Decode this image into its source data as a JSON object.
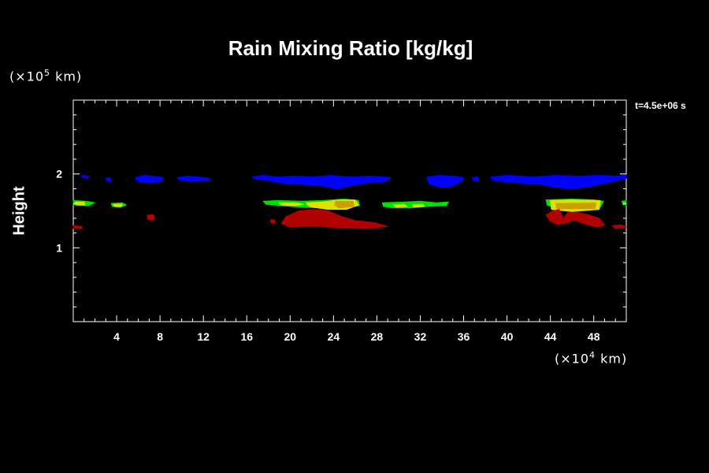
{
  "title": "Rain Mixing Ratio [kg/kg]",
  "time_label": "t=4.5e+06 s",
  "y_unit": {
    "prefix": "(×10",
    "exp": "5",
    "suffix": " km)"
  },
  "x_unit": {
    "prefix": "(×10",
    "exp": "4",
    "suffix": " km)"
  },
  "chart_data": {
    "type": "heatmap",
    "title": "Rain Mixing Ratio [kg/kg]",
    "ylabel": "Height",
    "xlabel": "",
    "xlim": [
      0,
      51
    ],
    "ylim": [
      0,
      3
    ],
    "x_ticks": [
      4,
      8,
      12,
      16,
      20,
      24,
      28,
      32,
      36,
      40,
      44,
      48
    ],
    "y_ticks": [
      1,
      2
    ],
    "colors": {
      "low": "#0000ff",
      "mid": "#00e000",
      "high": "#e0e000",
      "peak": "#c8a000",
      "deep": "#b00000"
    },
    "regions": [
      {
        "level": "low",
        "points": [
          [
            0.8,
            1.98
          ],
          [
            1.5,
            1.97
          ],
          [
            1.3,
            1.94
          ],
          [
            0.8,
            1.95
          ]
        ]
      },
      {
        "level": "low",
        "points": [
          [
            3.0,
            1.94
          ],
          [
            3.4,
            1.95
          ],
          [
            3.5,
            1.9
          ],
          [
            3.1,
            1.9
          ]
        ]
      },
      {
        "level": "low",
        "points": [
          [
            5.7,
            1.95
          ],
          [
            6.5,
            1.98
          ],
          [
            7.4,
            1.97
          ],
          [
            8.3,
            1.95
          ],
          [
            8.1,
            1.9
          ],
          [
            7.2,
            1.88
          ],
          [
            6.2,
            1.89
          ],
          [
            5.8,
            1.92
          ]
        ]
      },
      {
        "level": "low",
        "points": [
          [
            9.6,
            1.95
          ],
          [
            10.5,
            1.97
          ],
          [
            11.4,
            1.96
          ],
          [
            12.6,
            1.94
          ],
          [
            12.4,
            1.91
          ],
          [
            11.0,
            1.9
          ],
          [
            9.8,
            1.92
          ]
        ]
      },
      {
        "level": "low",
        "points": [
          [
            16.5,
            1.96
          ],
          [
            17.5,
            1.98
          ],
          [
            18.8,
            1.96
          ],
          [
            20.5,
            1.97
          ],
          [
            22.0,
            1.96
          ],
          [
            23.8,
            1.98
          ],
          [
            25.5,
            1.96
          ],
          [
            27.5,
            1.97
          ],
          [
            29.3,
            1.95
          ],
          [
            28.8,
            1.9
          ],
          [
            27.2,
            1.88
          ],
          [
            25.5,
            1.84
          ],
          [
            24.3,
            1.8
          ],
          [
            23.0,
            1.84
          ],
          [
            21.0,
            1.86
          ],
          [
            19.0,
            1.88
          ],
          [
            17.8,
            1.92
          ],
          [
            16.8,
            1.93
          ]
        ]
      },
      {
        "level": "low",
        "points": [
          [
            32.6,
            1.96
          ],
          [
            33.8,
            1.98
          ],
          [
            35.2,
            1.97
          ],
          [
            36.0,
            1.95
          ],
          [
            35.8,
            1.9
          ],
          [
            35.0,
            1.84
          ],
          [
            34.0,
            1.82
          ],
          [
            33.0,
            1.85
          ],
          [
            32.7,
            1.9
          ]
        ]
      },
      {
        "level": "low",
        "points": [
          [
            36.8,
            1.95
          ],
          [
            37.3,
            1.96
          ],
          [
            37.4,
            1.92
          ],
          [
            36.9,
            1.91
          ]
        ]
      },
      {
        "level": "low",
        "points": [
          [
            38.5,
            1.96
          ],
          [
            40.0,
            1.98
          ],
          [
            42.5,
            1.96
          ],
          [
            44.5,
            1.98
          ],
          [
            46.5,
            1.97
          ],
          [
            48.5,
            1.98
          ],
          [
            50.2,
            1.97
          ],
          [
            51.0,
            1.99
          ],
          [
            51.0,
            1.94
          ],
          [
            49.8,
            1.9
          ],
          [
            48.0,
            1.84
          ],
          [
            46.0,
            1.8
          ],
          [
            44.5,
            1.82
          ],
          [
            43.0,
            1.86
          ],
          [
            41.0,
            1.88
          ],
          [
            39.5,
            1.9
          ],
          [
            38.7,
            1.92
          ]
        ]
      },
      {
        "level": "mid",
        "points": [
          [
            0.0,
            1.64
          ],
          [
            1.2,
            1.63
          ],
          [
            2.0,
            1.61
          ],
          [
            1.4,
            1.57
          ],
          [
            0.0,
            1.58
          ]
        ]
      },
      {
        "level": "mid",
        "points": [
          [
            3.5,
            1.6
          ],
          [
            4.5,
            1.61
          ],
          [
            4.9,
            1.58
          ],
          [
            4.3,
            1.55
          ],
          [
            3.6,
            1.56
          ]
        ]
      },
      {
        "level": "mid",
        "points": [
          [
            17.5,
            1.63
          ],
          [
            19.0,
            1.64
          ],
          [
            21.0,
            1.63
          ],
          [
            23.0,
            1.64
          ],
          [
            25.0,
            1.66
          ],
          [
            26.3,
            1.64
          ],
          [
            26.4,
            1.57
          ],
          [
            25.0,
            1.54
          ],
          [
            23.0,
            1.54
          ],
          [
            21.0,
            1.55
          ],
          [
            19.2,
            1.57
          ],
          [
            17.8,
            1.59
          ]
        ]
      },
      {
        "level": "mid",
        "points": [
          [
            28.5,
            1.61
          ],
          [
            30.5,
            1.62
          ],
          [
            32.0,
            1.63
          ],
          [
            33.5,
            1.61
          ],
          [
            34.6,
            1.62
          ],
          [
            34.4,
            1.57
          ],
          [
            32.6,
            1.56
          ],
          [
            31.0,
            1.54
          ],
          [
            29.5,
            1.54
          ],
          [
            28.6,
            1.56
          ]
        ]
      },
      {
        "level": "mid",
        "points": [
          [
            43.6,
            1.65
          ],
          [
            46.0,
            1.66
          ],
          [
            48.0,
            1.65
          ],
          [
            48.9,
            1.63
          ],
          [
            48.6,
            1.55
          ],
          [
            46.5,
            1.52
          ],
          [
            44.5,
            1.53
          ],
          [
            43.7,
            1.58
          ]
        ]
      },
      {
        "level": "mid",
        "points": [
          [
            50.6,
            1.63
          ],
          [
            51.0,
            1.64
          ],
          [
            51.0,
            1.58
          ],
          [
            50.7,
            1.58
          ]
        ]
      },
      {
        "level": "high",
        "points": [
          [
            0.2,
            1.62
          ],
          [
            1.0,
            1.62
          ],
          [
            1.1,
            1.58
          ],
          [
            0.3,
            1.58
          ]
        ]
      },
      {
        "level": "high",
        "points": [
          [
            3.7,
            1.59
          ],
          [
            4.5,
            1.59
          ],
          [
            4.5,
            1.56
          ],
          [
            3.8,
            1.56
          ]
        ]
      },
      {
        "level": "high",
        "points": [
          [
            19.0,
            1.61
          ],
          [
            20.5,
            1.61
          ],
          [
            21.2,
            1.59
          ],
          [
            20.4,
            1.57
          ],
          [
            19.2,
            1.58
          ]
        ]
      },
      {
        "level": "high",
        "points": [
          [
            21.5,
            1.61
          ],
          [
            23.0,
            1.62
          ],
          [
            24.5,
            1.65
          ],
          [
            26.0,
            1.65
          ],
          [
            26.3,
            1.58
          ],
          [
            25.2,
            1.52
          ],
          [
            23.5,
            1.52
          ],
          [
            22.0,
            1.55
          ],
          [
            21.6,
            1.58
          ]
        ]
      },
      {
        "level": "high",
        "points": [
          [
            29.5,
            1.58
          ],
          [
            30.5,
            1.59
          ],
          [
            30.8,
            1.56
          ],
          [
            29.8,
            1.55
          ]
        ]
      },
      {
        "level": "high",
        "points": [
          [
            31.3,
            1.58
          ],
          [
            32.2,
            1.59
          ],
          [
            32.4,
            1.56
          ],
          [
            31.4,
            1.55
          ]
        ]
      },
      {
        "level": "high",
        "points": [
          [
            44.0,
            1.64
          ],
          [
            46.0,
            1.65
          ],
          [
            48.6,
            1.64
          ],
          [
            48.5,
            1.52
          ],
          [
            46.0,
            1.49
          ],
          [
            44.1,
            1.52
          ]
        ]
      },
      {
        "level": "peak",
        "points": [
          [
            24.2,
            1.63
          ],
          [
            25.8,
            1.63
          ],
          [
            25.9,
            1.56
          ],
          [
            24.5,
            1.54
          ],
          [
            24.1,
            1.58
          ]
        ]
      },
      {
        "level": "peak",
        "points": [
          [
            44.5,
            1.6
          ],
          [
            48.2,
            1.61
          ],
          [
            48.1,
            1.53
          ],
          [
            44.6,
            1.53
          ]
        ]
      },
      {
        "level": "deep",
        "points": [
          [
            6.8,
            1.44
          ],
          [
            7.4,
            1.45
          ],
          [
            7.5,
            1.38
          ],
          [
            6.9,
            1.38
          ]
        ]
      },
      {
        "level": "deep",
        "points": [
          [
            18.2,
            1.38
          ],
          [
            18.6,
            1.38
          ],
          [
            18.6,
            1.33
          ],
          [
            18.2,
            1.34
          ]
        ]
      },
      {
        "level": "deep",
        "points": [
          [
            19.6,
            1.42
          ],
          [
            20.8,
            1.5
          ],
          [
            22.0,
            1.52
          ],
          [
            23.5,
            1.5
          ],
          [
            24.8,
            1.42
          ],
          [
            26.0,
            1.37
          ],
          [
            27.8,
            1.34
          ],
          [
            29.0,
            1.29
          ],
          [
            27.0,
            1.26
          ],
          [
            24.5,
            1.27
          ],
          [
            22.0,
            1.3
          ],
          [
            20.0,
            1.28
          ],
          [
            19.2,
            1.33
          ]
        ]
      },
      {
        "level": "deep",
        "points": [
          [
            44.1,
            1.49
          ],
          [
            44.8,
            1.52
          ],
          [
            45.2,
            1.4
          ],
          [
            45.6,
            1.48
          ],
          [
            46.5,
            1.48
          ],
          [
            47.5,
            1.45
          ],
          [
            48.5,
            1.4
          ],
          [
            49.0,
            1.31
          ],
          [
            48.3,
            1.28
          ],
          [
            47.0,
            1.33
          ],
          [
            46.2,
            1.38
          ],
          [
            45.4,
            1.33
          ],
          [
            44.6,
            1.32
          ],
          [
            44.0,
            1.36
          ],
          [
            43.6,
            1.44
          ]
        ]
      },
      {
        "level": "deep",
        "points": [
          [
            49.7,
            1.3
          ],
          [
            50.6,
            1.31
          ],
          [
            51.0,
            1.28
          ],
          [
            50.0,
            1.26
          ]
        ]
      },
      {
        "level": "deep",
        "points": [
          [
            0.0,
            1.3
          ],
          [
            0.8,
            1.29
          ],
          [
            0.8,
            1.26
          ],
          [
            0.0,
            1.26
          ]
        ]
      }
    ]
  }
}
